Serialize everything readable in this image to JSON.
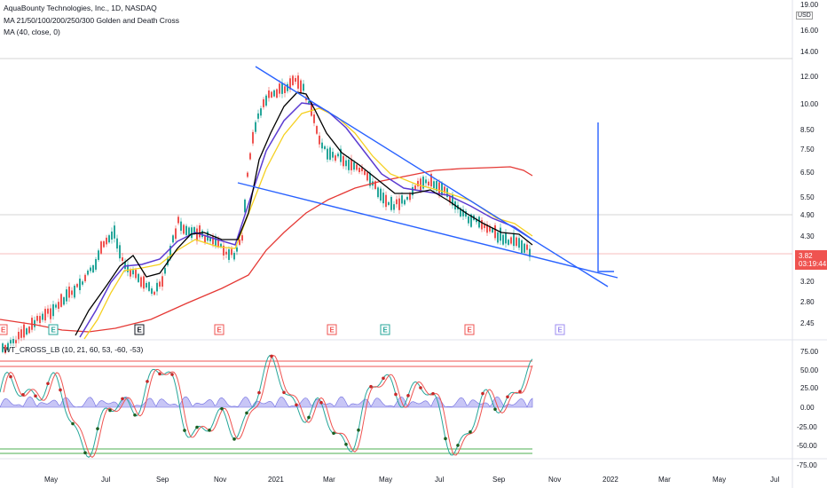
{
  "legend": {
    "symbol": "AquaBounty Technologies, Inc., 1D, NASDAQ",
    "study1": "MA 21/50/100/200/250/300 Golden and Death Cross",
    "study2": "MA (40, close, 0)",
    "oscillator": "WT_CROSS_LB (10, 21, 60, 53, -60, -53)"
  },
  "price_axis": {
    "currency": "USD",
    "top_partial": "19.00",
    "ticks": [
      "16.00",
      "14.00",
      "12.00",
      "10.00",
      "8.50",
      "7.50",
      "6.50",
      "5.50",
      "4.90",
      "4.30",
      "3.20",
      "2.80",
      "2.45"
    ],
    "last_price": "3.82",
    "countdown": "03:19:44"
  },
  "osc_axis": {
    "ticks": [
      "75.00",
      "50.00",
      "25.00",
      "0.00",
      "-25.00",
      "-50.00",
      "-75.00"
    ]
  },
  "time_axis": {
    "labels": [
      "May",
      "Jul",
      "Sep",
      "Nov",
      "2021",
      "Mar",
      "May",
      "Jul",
      "Sep",
      "Nov",
      "2022",
      "Mar",
      "May",
      "Jul"
    ]
  },
  "earnings_marker": "E",
  "colors": {
    "up": "#26a69a",
    "down": "#ef5350",
    "ma_black": "#000000",
    "ma_purple": "#5b3bd1",
    "ma_yellow": "#f5d020",
    "ma_red": "#e53935",
    "trendline": "#2962ff",
    "wave_fill": "#9a98ef"
  }
}
